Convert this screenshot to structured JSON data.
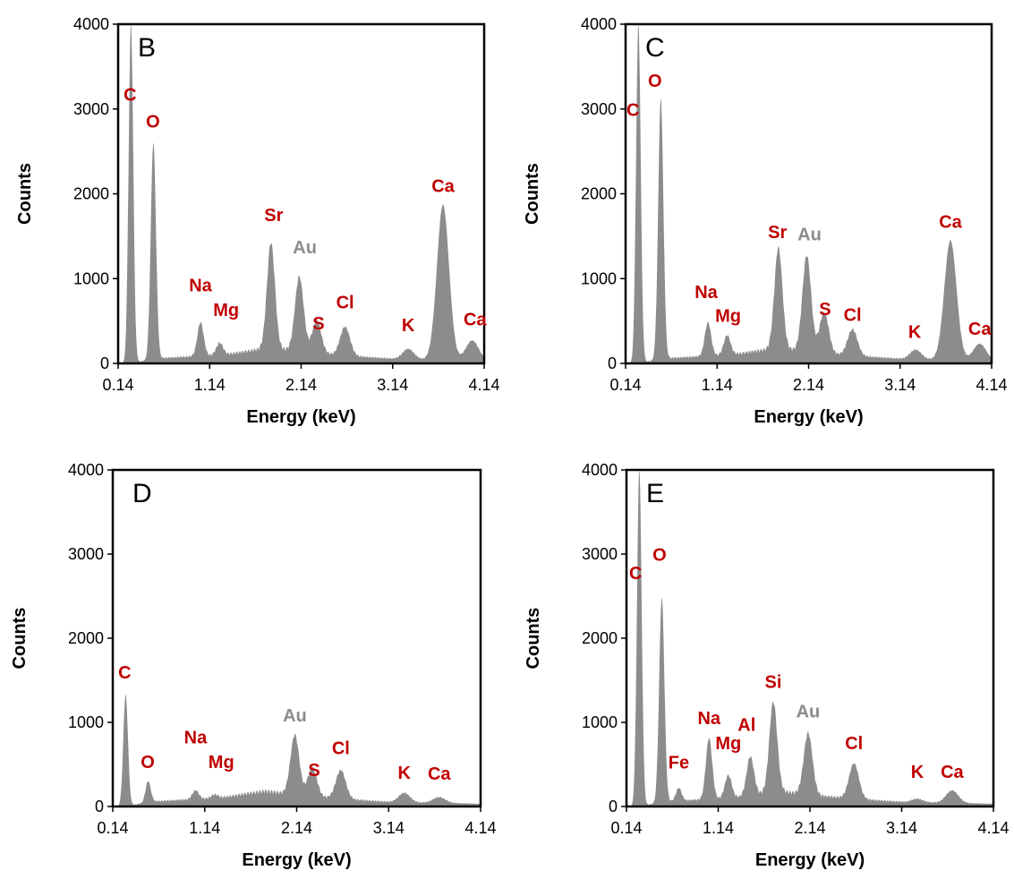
{
  "figure": {
    "colors": {
      "spectrum": "#8c8c8c",
      "element": "#c00000",
      "coating": "#8c8c8c",
      "frame": "#000000"
    }
  },
  "chart_data": [
    {
      "type": "area",
      "panel_label": "B",
      "xlabel": "Energy (keV)",
      "ylabel": "Counts",
      "xlim": [
        0.14,
        4.14
      ],
      "ylim": [
        0,
        4000
      ],
      "x_ticks": [
        "0.14",
        "1.14",
        "2.14",
        "3.14",
        "4.14"
      ],
      "y_ticks": [
        "0",
        "1000",
        "2000",
        "3000",
        "4000"
      ],
      "grid": false,
      "peaks": [
        {
          "label": "C",
          "x": 0.28,
          "y": 4000,
          "kind": "element",
          "tx": 0.27,
          "ty": 3100
        },
        {
          "label": "O",
          "x": 0.525,
          "y": 2600,
          "kind": "element",
          "tx": 0.52,
          "ty": 2780
        },
        {
          "label": "Na",
          "x": 1.04,
          "y": 480,
          "kind": "element",
          "tx": 1.04,
          "ty": 850
        },
        {
          "label": "Mg",
          "x": 1.25,
          "y": 240,
          "kind": "element",
          "tx": 1.32,
          "ty": 560
        },
        {
          "label": "Sr",
          "x": 1.81,
          "y": 1420,
          "kind": "element",
          "tx": 1.84,
          "ty": 1680
        },
        {
          "label": "Au",
          "x": 2.12,
          "y": 1020,
          "kind": "coating",
          "tx": 2.18,
          "ty": 1300
        },
        {
          "label": "S",
          "x": 2.31,
          "y": 500,
          "kind": "element",
          "tx": 2.33,
          "ty": 400
        },
        {
          "label": "Cl",
          "x": 2.62,
          "y": 430,
          "kind": "element",
          "tx": 2.62,
          "ty": 650
        },
        {
          "label": "K",
          "x": 3.31,
          "y": 170,
          "kind": "element",
          "tx": 3.31,
          "ty": 380
        },
        {
          "label": "Ca",
          "x": 3.69,
          "y": 1870,
          "kind": "element",
          "tx": 3.69,
          "ty": 2020
        },
        {
          "label": "Ca",
          "x": 4.01,
          "y": 270,
          "kind": "element",
          "tx": 4.04,
          "ty": 450
        }
      ]
    },
    {
      "type": "area",
      "panel_label": "C",
      "xlabel": "Energy (keV)",
      "ylabel": "Counts",
      "xlim": [
        0.14,
        4.14
      ],
      "ylim": [
        0,
        4000
      ],
      "x_ticks": [
        "0.14",
        "1.14",
        "2.14",
        "3.14",
        "4.14"
      ],
      "y_ticks": [
        "0",
        "1000",
        "2000",
        "3000",
        "4000"
      ],
      "grid": false,
      "peaks": [
        {
          "label": "C",
          "x": 0.28,
          "y": 4000,
          "kind": "element",
          "tx": 0.22,
          "ty": 2920
        },
        {
          "label": "O",
          "x": 0.525,
          "y": 3120,
          "kind": "element",
          "tx": 0.46,
          "ty": 3260
        },
        {
          "label": "Na",
          "x": 1.04,
          "y": 480,
          "kind": "element",
          "tx": 1.02,
          "ty": 770
        },
        {
          "label": "Mg",
          "x": 1.25,
          "y": 330,
          "kind": "element",
          "tx": 1.26,
          "ty": 490
        },
        {
          "label": "Sr",
          "x": 1.81,
          "y": 1360,
          "kind": "element",
          "tx": 1.8,
          "ty": 1480
        },
        {
          "label": "Au",
          "x": 2.12,
          "y": 1270,
          "kind": "coating",
          "tx": 2.15,
          "ty": 1450
        },
        {
          "label": "S",
          "x": 2.31,
          "y": 600,
          "kind": "element",
          "tx": 2.32,
          "ty": 570
        },
        {
          "label": "Cl",
          "x": 2.62,
          "y": 400,
          "kind": "element",
          "tx": 2.62,
          "ty": 500
        },
        {
          "label": "K",
          "x": 3.31,
          "y": 160,
          "kind": "element",
          "tx": 3.3,
          "ty": 300
        },
        {
          "label": "Ca",
          "x": 3.69,
          "y": 1450,
          "kind": "element",
          "tx": 3.69,
          "ty": 1600
        },
        {
          "label": "Ca",
          "x": 4.01,
          "y": 230,
          "kind": "element",
          "tx": 4.01,
          "ty": 340
        }
      ]
    },
    {
      "type": "area",
      "panel_label": "D",
      "xlabel": "Energy (keV)",
      "ylabel": "Counts",
      "xlim": [
        0.14,
        4.14
      ],
      "ylim": [
        0,
        4000
      ],
      "x_ticks": [
        "0.14",
        "1.14",
        "2.14",
        "3.14",
        "4.14"
      ],
      "y_ticks": [
        "0",
        "1000",
        "2000",
        "3000",
        "4000"
      ],
      "grid": false,
      "peaks": [
        {
          "label": "C",
          "x": 0.28,
          "y": 1330,
          "kind": "element",
          "tx": 0.27,
          "ty": 1520
        },
        {
          "label": "O",
          "x": 0.525,
          "y": 300,
          "kind": "element",
          "tx": 0.52,
          "ty": 460
        },
        {
          "label": "Na",
          "x": 1.04,
          "y": 190,
          "kind": "element",
          "tx": 1.04,
          "ty": 750
        },
        {
          "label": "Mg",
          "x": 1.25,
          "y": 140,
          "kind": "element",
          "tx": 1.32,
          "ty": 460
        },
        {
          "label": "Au",
          "x": 2.12,
          "y": 850,
          "kind": "coating",
          "tx": 2.12,
          "ty": 1010
        },
        {
          "label": "S",
          "x": 2.31,
          "y": 460,
          "kind": "element",
          "tx": 2.33,
          "ty": 360
        },
        {
          "label": "Cl",
          "x": 2.62,
          "y": 430,
          "kind": "element",
          "tx": 2.62,
          "ty": 620
        },
        {
          "label": "K",
          "x": 3.31,
          "y": 160,
          "kind": "element",
          "tx": 3.31,
          "ty": 330
        },
        {
          "label": "Ca",
          "x": 3.69,
          "y": 110,
          "kind": "element",
          "tx": 3.69,
          "ty": 320
        }
      ]
    },
    {
      "type": "area",
      "panel_label": "E",
      "xlabel": "Energy (keV)",
      "ylabel": "Counts",
      "xlim": [
        0.14,
        4.14
      ],
      "ylim": [
        0,
        4000
      ],
      "x_ticks": [
        "0.14",
        "1.14",
        "2.14",
        "3.14",
        "4.14"
      ],
      "y_ticks": [
        "0",
        "1000",
        "2000",
        "3000",
        "4000"
      ],
      "grid": false,
      "peaks": [
        {
          "label": "C",
          "x": 0.28,
          "y": 4000,
          "kind": "element",
          "tx": 0.24,
          "ty": 2700
        },
        {
          "label": "O",
          "x": 0.525,
          "y": 2480,
          "kind": "element",
          "tx": 0.5,
          "ty": 2920
        },
        {
          "label": "Fe",
          "x": 0.71,
          "y": 220,
          "kind": "element",
          "tx": 0.71,
          "ty": 450
        },
        {
          "label": "Na",
          "x": 1.04,
          "y": 810,
          "kind": "element",
          "tx": 1.04,
          "ty": 980
        },
        {
          "label": "Mg",
          "x": 1.25,
          "y": 370,
          "kind": "element",
          "tx": 1.25,
          "ty": 680
        },
        {
          "label": "Al",
          "x": 1.49,
          "y": 590,
          "kind": "element",
          "tx": 1.45,
          "ty": 900
        },
        {
          "label": "Si",
          "x": 1.74,
          "y": 1240,
          "kind": "element",
          "tx": 1.74,
          "ty": 1410
        },
        {
          "label": "Au",
          "x": 2.12,
          "y": 870,
          "kind": "coating",
          "tx": 2.12,
          "ty": 1060
        },
        {
          "label": "Cl",
          "x": 2.62,
          "y": 510,
          "kind": "element",
          "tx": 2.62,
          "ty": 680
        },
        {
          "label": "K",
          "x": 3.31,
          "y": 90,
          "kind": "element",
          "tx": 3.31,
          "ty": 340
        },
        {
          "label": "Ca",
          "x": 3.69,
          "y": 190,
          "kind": "element",
          "tx": 3.69,
          "ty": 340
        }
      ]
    }
  ]
}
